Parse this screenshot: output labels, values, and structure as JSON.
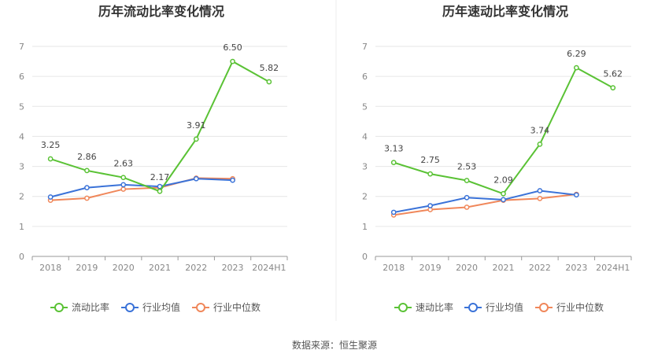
{
  "source_prefix": "数据来源：",
  "source_name": "恒生聚源",
  "colors": {
    "main": "#5ac235",
    "avg": "#3a72d8",
    "median": "#f0875a",
    "grid": "#e6e6e6",
    "axis": "#999999"
  },
  "chart_data": [
    {
      "type": "line",
      "title": "历年流动比率变化情况",
      "categories": [
        "2018",
        "2019",
        "2020",
        "2021",
        "2022",
        "2023",
        "2024H1"
      ],
      "ylim": [
        0,
        7
      ],
      "yticks": [
        0,
        1,
        2,
        3,
        4,
        5,
        6,
        7
      ],
      "grid": true,
      "legend_position": "bottom",
      "series": [
        {
          "name": "流动比率",
          "key": "main",
          "values": [
            3.25,
            2.86,
            2.63,
            2.17,
            3.91,
            6.5,
            5.82
          ],
          "labels": [
            "3.25",
            "2.86",
            "2.63",
            "2.17",
            "3.91",
            "6.50",
            "5.82"
          ]
        },
        {
          "name": "行业均值",
          "key": "avg",
          "values": [
            1.98,
            2.29,
            2.39,
            2.33,
            2.59,
            2.54,
            null
          ]
        },
        {
          "name": "行业中位数",
          "key": "median",
          "values": [
            1.87,
            1.94,
            2.24,
            2.29,
            2.61,
            2.59,
            null
          ]
        }
      ]
    },
    {
      "type": "line",
      "title": "历年速动比率变化情况",
      "categories": [
        "2018",
        "2019",
        "2020",
        "2021",
        "2022",
        "2023",
        "2024H1"
      ],
      "ylim": [
        0,
        7
      ],
      "yticks": [
        0,
        1,
        2,
        3,
        4,
        5,
        6,
        7
      ],
      "grid": true,
      "legend_position": "bottom",
      "series": [
        {
          "name": "速动比率",
          "key": "main",
          "values": [
            3.13,
            2.75,
            2.53,
            2.09,
            3.74,
            6.29,
            5.62
          ],
          "labels": [
            "3.13",
            "2.75",
            "2.53",
            "2.09",
            "3.74",
            "6.29",
            "5.62"
          ]
        },
        {
          "name": "行业均值",
          "key": "avg",
          "values": [
            1.47,
            1.69,
            1.96,
            1.89,
            2.19,
            2.05,
            null
          ]
        },
        {
          "name": "行业中位数",
          "key": "median",
          "values": [
            1.38,
            1.56,
            1.64,
            1.87,
            1.93,
            2.07,
            null
          ]
        }
      ]
    }
  ]
}
